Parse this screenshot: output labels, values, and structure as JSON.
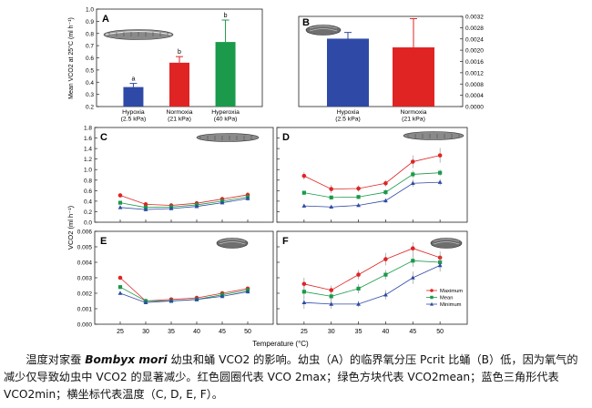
{
  "caption": {
    "part1": "温度对家蚕 ",
    "species": "Bombyx mori",
    "part2": " 幼虫和蛹 VCO2 的影响。幼虫（A）的临界氧分压 Pcrit 比蛹（B）低，因为氧气的减少仅导致幼虫中 VCO2 的显著减少。红色圆圈代表 VCO 2max；绿色方块代表 VCO2mean；蓝色三角形代表 VCO2min；横坐标代表温度（C, D, E, F）。"
  },
  "colors": {
    "blue": "#2f4aa6",
    "red": "#e02424",
    "green": "#1a9a4a"
  },
  "chart_data": [
    {
      "panel": "A",
      "type": "bar",
      "ylabel": "Mean VCO2 at 25°C (ml h⁻¹)",
      "ylim": [
        0.2,
        1.0
      ],
      "yticks": [
        0.2,
        0.3,
        0.4,
        0.5,
        0.6,
        0.7,
        0.8,
        0.9,
        1.0
      ],
      "ytick_labels": [
        "0.2",
        "0.3",
        "0.4",
        "0.5",
        "0.6",
        "0.7",
        "0.8",
        "0.9",
        "1.0"
      ],
      "categories": [
        "Hypoxia\n(2.5 kPa)",
        "Normoxia\n(21 kPa)",
        "Hyperoxia\n(40 kPa)"
      ],
      "values": [
        0.36,
        0.56,
        0.73
      ],
      "errors": [
        0.03,
        0.05,
        0.18
      ],
      "letters": [
        "a",
        "b",
        "b"
      ],
      "bar_colors": [
        "#2f4aa6",
        "#e02424",
        "#1a9a4a"
      ]
    },
    {
      "panel": "B",
      "type": "bar",
      "ylim": [
        0.0,
        0.0032
      ],
      "yticks": [
        0.0,
        0.0004,
        0.0008,
        0.0012,
        0.0016,
        0.002,
        0.0024,
        0.0028,
        0.0032
      ],
      "ytick_labels": [
        "0.0000",
        "0.0004",
        "0.0008",
        "0.0012",
        "0.0016",
        "0.0020",
        "0.0024",
        "0.0028",
        "0.0032"
      ],
      "categories": [
        "Hypoxia\n(2.5 kPa)",
        "Normoxia\n(21 kPa)"
      ],
      "values": [
        0.00241,
        0.0021
      ],
      "errors": [
        0.00022,
        0.00102
      ],
      "bar_colors": [
        "#2f4aa6",
        "#e02424"
      ]
    },
    {
      "panel": "C",
      "type": "line",
      "x": [
        25,
        30,
        35,
        40,
        45,
        50
      ],
      "ylim": [
        0.0,
        1.8
      ],
      "yticks": [
        0.0,
        0.2,
        0.4,
        0.6,
        0.8,
        1.0,
        1.2,
        1.4,
        1.6,
        1.8
      ],
      "ytick_labels": [
        "0.0",
        "0.2",
        "0.4",
        "0.6",
        "0.8",
        "1.0",
        "1.2",
        "1.4",
        "1.6",
        "1.8"
      ],
      "ylabel": "VCO2 (ml h⁻¹)",
      "series": [
        {
          "marker": "circle",
          "color": "#e02424",
          "values": [
            0.51,
            0.34,
            0.32,
            0.36,
            0.44,
            0.52
          ],
          "errors": [
            0.04,
            0.03,
            0.03,
            0.03,
            0.04,
            0.05
          ]
        },
        {
          "marker": "square",
          "color": "#1a9a4a",
          "values": [
            0.37,
            0.28,
            0.29,
            0.33,
            0.4,
            0.48
          ],
          "errors": [
            0.03,
            0.02,
            0.02,
            0.03,
            0.03,
            0.04
          ]
        },
        {
          "marker": "triangle",
          "color": "#2f4aa6",
          "values": [
            0.28,
            0.24,
            0.26,
            0.3,
            0.37,
            0.45
          ],
          "errors": [
            0.02,
            0.02,
            0.02,
            0.02,
            0.03,
            0.04
          ]
        }
      ]
    },
    {
      "panel": "D",
      "type": "line",
      "x": [
        25,
        30,
        35,
        40,
        45,
        50
      ],
      "ylim": [
        0.0,
        1.8
      ],
      "yticks": [
        0.0,
        0.2,
        0.4,
        0.6,
        0.8,
        1.0,
        1.2,
        1.4,
        1.6,
        1.8
      ],
      "series": [
        {
          "marker": "circle",
          "color": "#e02424",
          "values": [
            0.88,
            0.63,
            0.64,
            0.74,
            1.15,
            1.27
          ],
          "errors": [
            0.07,
            0.08,
            0.06,
            0.06,
            0.12,
            0.14
          ]
        },
        {
          "marker": "square",
          "color": "#1a9a4a",
          "values": [
            0.56,
            0.47,
            0.48,
            0.57,
            0.91,
            0.94
          ],
          "errors": [
            0.04,
            0.04,
            0.04,
            0.05,
            0.07,
            0.06
          ]
        },
        {
          "marker": "triangle",
          "color": "#2f4aa6",
          "values": [
            0.31,
            0.29,
            0.32,
            0.41,
            0.74,
            0.76
          ],
          "errors": [
            0.03,
            0.03,
            0.03,
            0.04,
            0.07,
            0.06
          ]
        }
      ]
    },
    {
      "panel": "E",
      "type": "line",
      "x": [
        25,
        30,
        35,
        40,
        45,
        50
      ],
      "ylim": [
        0.0,
        0.006
      ],
      "yticks": [
        0.0,
        0.001,
        0.002,
        0.003,
        0.004,
        0.005,
        0.006
      ],
      "ytick_labels": [
        "0.000",
        "0.001",
        "0.002",
        "0.003",
        "0.004",
        "0.005",
        "0.006"
      ],
      "series": [
        {
          "marker": "circle",
          "color": "#e02424",
          "values": [
            0.003,
            0.0015,
            0.0016,
            0.0017,
            0.002,
            0.0023
          ],
          "errors": [
            0.0001,
            0.0001,
            0.0001,
            0.0001,
            0.0001,
            0.0001
          ]
        },
        {
          "marker": "square",
          "color": "#1a9a4a",
          "values": [
            0.0024,
            0.0015,
            0.0015,
            0.0016,
            0.0019,
            0.0022
          ],
          "errors": [
            0.0001,
            0.0001,
            0.0001,
            0.0001,
            0.0001,
            0.0001
          ]
        },
        {
          "marker": "triangle",
          "color": "#2f4aa6",
          "values": [
            0.002,
            0.0014,
            0.0015,
            0.0016,
            0.0018,
            0.0021
          ],
          "errors": [
            0.0001,
            0.0001,
            0.0001,
            0.0001,
            0.0001,
            0.0001
          ]
        }
      ]
    },
    {
      "panel": "F",
      "type": "line",
      "x": [
        25,
        30,
        35,
        40,
        45,
        50
      ],
      "ylim": [
        0.0,
        0.006
      ],
      "yticks": [
        0.0,
        0.001,
        0.002,
        0.003,
        0.004,
        0.005,
        0.006
      ],
      "series": [
        {
          "marker": "circle",
          "color": "#e02424",
          "values": [
            0.0026,
            0.0022,
            0.0032,
            0.0042,
            0.0049,
            0.0043
          ],
          "errors": [
            0.0004,
            0.0003,
            0.0003,
            0.0004,
            0.0004,
            0.0004
          ]
        },
        {
          "marker": "square",
          "color": "#1a9a4a",
          "values": [
            0.0021,
            0.0018,
            0.0023,
            0.0032,
            0.0041,
            0.004
          ],
          "errors": [
            0.0004,
            0.0003,
            0.0003,
            0.0003,
            0.0004,
            0.0004
          ]
        },
        {
          "marker": "triangle",
          "color": "#2f4aa6",
          "values": [
            0.0014,
            0.0013,
            0.0013,
            0.0019,
            0.003,
            0.0038
          ],
          "errors": [
            0.0004,
            0.0003,
            0.0002,
            0.0003,
            0.0004,
            0.0004
          ]
        }
      ]
    }
  ],
  "xaxis": {
    "ticks": [
      "25",
      "30",
      "35",
      "40",
      "45",
      "50"
    ],
    "label": "Temperature (°C)"
  },
  "legend": {
    "placement": "bottom-right of panel F",
    "items": [
      "Maximum",
      "Mean",
      "Minimum"
    ]
  }
}
